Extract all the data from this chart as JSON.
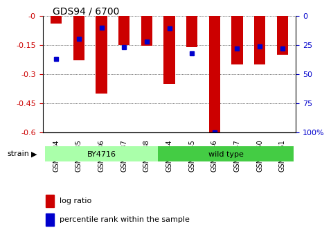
{
  "title": "GDS94 / 6700",
  "samples": [
    "GSM1634",
    "GSM1635",
    "GSM1636",
    "GSM1637",
    "GSM1638",
    "GSM1644",
    "GSM1645",
    "GSM1646",
    "GSM1647",
    "GSM1650",
    "GSM1651"
  ],
  "log_ratio": [
    -0.04,
    -0.23,
    -0.4,
    -0.15,
    -0.155,
    -0.35,
    -0.16,
    -0.6,
    -0.25,
    -0.25,
    -0.2
  ],
  "percentile_rank": [
    37,
    20,
    10,
    27,
    22,
    11,
    32,
    100,
    28,
    26,
    28
  ],
  "ylim": [
    -0.6,
    0.0
  ],
  "yticks": [
    0.0,
    -0.15,
    -0.3,
    -0.45,
    -0.6
  ],
  "ytick_labels": [
    "-0",
    "-0.15",
    "-0.3",
    "-0.45",
    "-0.6"
  ],
  "right_yticks": [
    0,
    25,
    50,
    75,
    100
  ],
  "right_ytick_labels": [
    "0",
    "25",
    "50",
    "75",
    "100%"
  ],
  "bar_color": "#cc0000",
  "dot_color": "#0000cc",
  "bar_width": 0.5,
  "strain_groups": [
    {
      "label": "BY4716",
      "start": 0,
      "end": 5,
      "color": "#aaffaa"
    },
    {
      "label": "wild type",
      "start": 5,
      "end": 10,
      "color": "#44cc44"
    }
  ],
  "strain_label": "strain",
  "grid_color": "#000000",
  "bg_color": "#ffffff",
  "tick_label_color_left": "#cc0000",
  "tick_label_color_right": "#0000cc",
  "legend_items": [
    {
      "label": "log ratio",
      "color": "#cc0000",
      "marker": "s"
    },
    {
      "label": "percentile rank within the sample",
      "color": "#0000cc",
      "marker": "s"
    }
  ]
}
